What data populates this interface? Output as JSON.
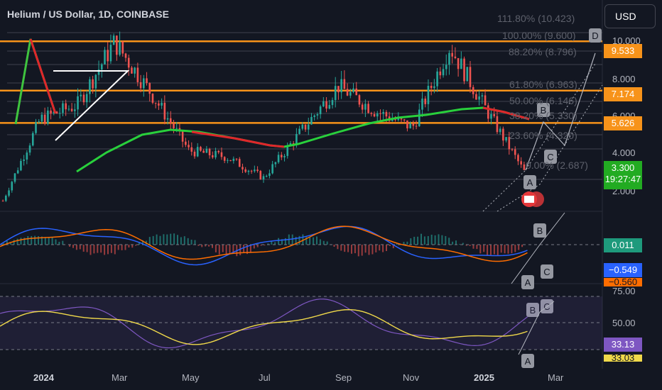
{
  "header": {
    "title": "Helium / US Dollar, 1D, COINBASE",
    "currency_button": "USD"
  },
  "colors": {
    "background": "#131722",
    "orange": "#f7931a",
    "green_ma": "#29d03c",
    "red_ma": "#e0262b",
    "rsi_line": "#7e57c2",
    "rsi_ma": "#f0d94a",
    "macd_line": "#2962ff",
    "signal_line": "#ff6d00"
  },
  "price_axis": {
    "ticks": [
      "10.000",
      "8.000",
      "6.000",
      "4.000",
      "2.000"
    ],
    "tags": {
      "level_1": "9.533",
      "level_2": "7.174",
      "level_3": "5.626",
      "last_price": "3.300",
      "countdown": "19:27:47"
    }
  },
  "macd_axis": {
    "tags": {
      "histogram": "0.011",
      "macd": "−0.549",
      "signal": "−0.560"
    }
  },
  "rsi_axis": {
    "ticks": [
      "75.00",
      "50.00"
    ],
    "tags": {
      "rsi": "33.13",
      "rsi_ma": "33.03"
    }
  },
  "time_axis": {
    "labels": [
      {
        "text": "2024",
        "bold": true
      },
      {
        "text": "Mar",
        "bold": false
      },
      {
        "text": "May",
        "bold": false
      },
      {
        "text": "Jul",
        "bold": false
      },
      {
        "text": "Sep",
        "bold": false
      },
      {
        "text": "Nov",
        "bold": false
      },
      {
        "text": "2025",
        "bold": true
      },
      {
        "text": "Mar",
        "bold": false
      }
    ]
  },
  "fib_levels": [
    {
      "ratio": "111.80%",
      "price": "(10.423)"
    },
    {
      "ratio": "100.00%",
      "price": "(9.600)"
    },
    {
      "ratio": "88.20%",
      "price": "(8.796)"
    },
    {
      "ratio": "61.80%",
      "price": "(6.963)"
    },
    {
      "ratio": "50.00%",
      "price": "(6.146)"
    },
    {
      "ratio": "38.20%",
      "price": "(5.330)"
    },
    {
      "ratio": "23.60%",
      "price": "(4.320)"
    },
    {
      "ratio": "0.00%",
      "price": "(2.687)"
    }
  ],
  "wave_labels": {
    "price": [
      "D",
      "B",
      "C",
      "A"
    ],
    "macd": [
      "B",
      "C",
      "A"
    ],
    "rsi": [
      "B",
      "C",
      "A"
    ]
  },
  "chart_data": {
    "type": "line",
    "title": "Helium / US Dollar, 1D, COINBASE",
    "x": [
      "2023-12",
      "2024-01",
      "2024-02",
      "2024-03",
      "2024-04",
      "2024-05",
      "2024-06",
      "2024-07",
      "2024-08",
      "2024-09",
      "2024-10",
      "2024-11",
      "2024-12",
      "2025-01",
      "2025-02"
    ],
    "series": [
      {
        "values": [
          1.9,
          5.8,
          6.5,
          9.5,
          7.0,
          4.3,
          4.0,
          3.0,
          5.2,
          7.4,
          6.2,
          5.4,
          9.3,
          6.2,
          3.3
        ]
      }
    ],
    "horizontal_levels": [
      9.533,
      7.174,
      5.626
    ],
    "last_price": 3.3,
    "ylim": [
      1.5,
      11
    ]
  }
}
